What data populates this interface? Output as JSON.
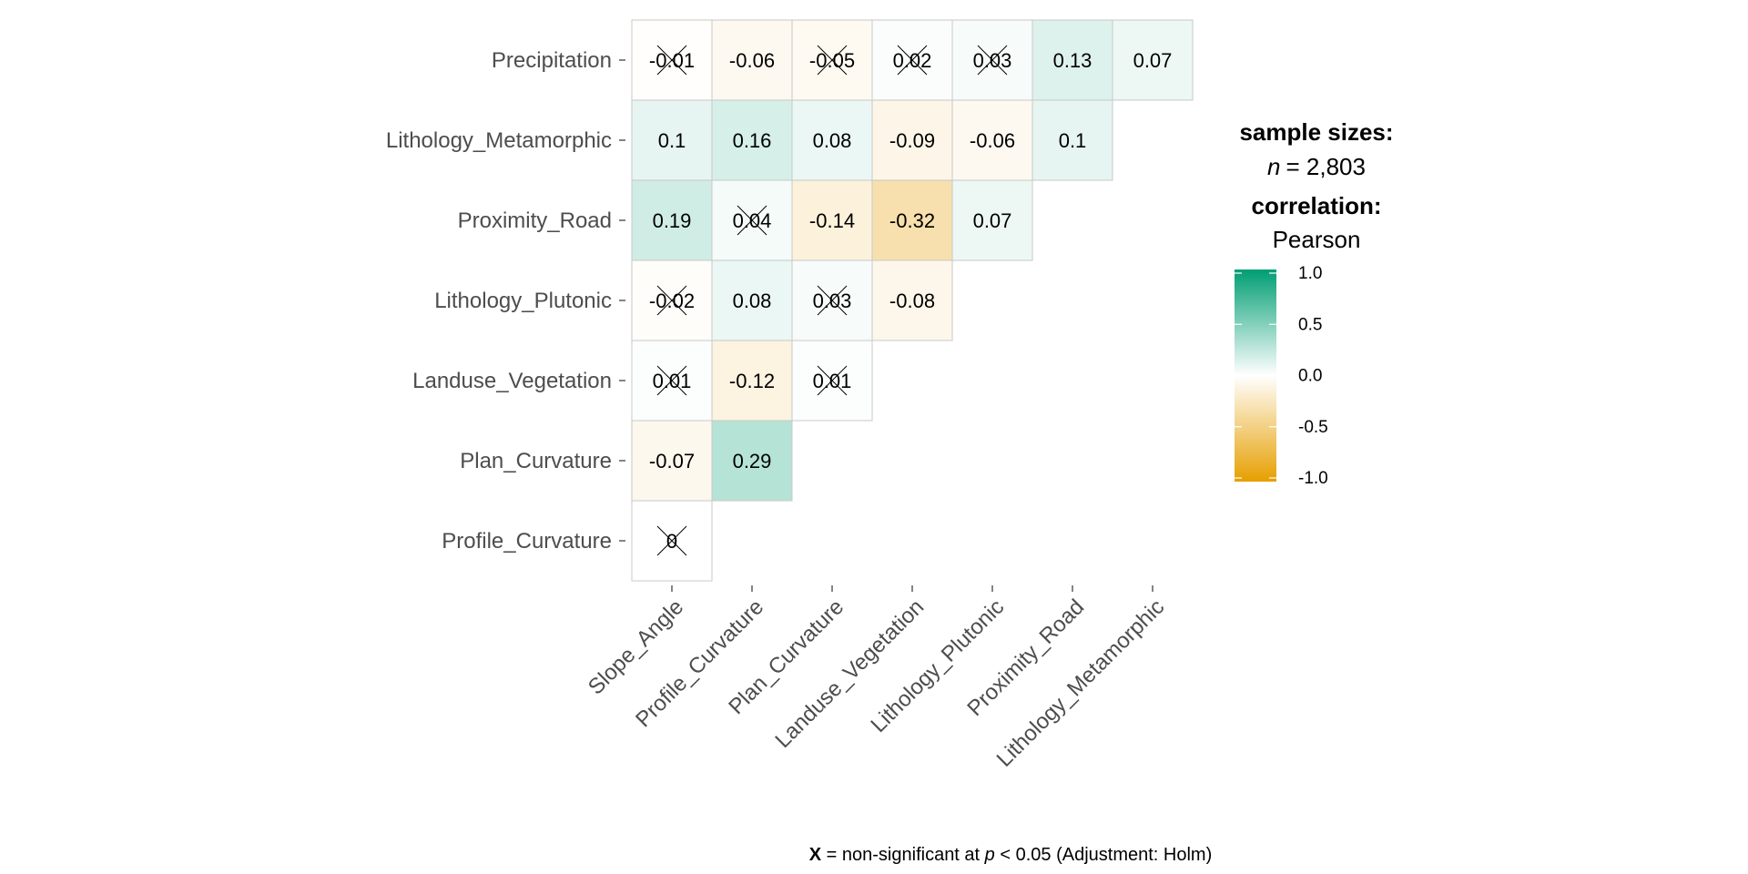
{
  "chart_data": {
    "type": "heatmap",
    "rows": [
      "Precipitation",
      "Lithology_Metamorphic",
      "Proximity_Road",
      "Lithology_Plutonic",
      "Landuse_Vegetation",
      "Plan_Curvature",
      "Profile_Curvature"
    ],
    "columns": [
      "Slope_Angle",
      "Profile_Curvature",
      "Plan_Curvature",
      "Landuse_Vegetation",
      "Lithology_Plutonic",
      "Proximity_Road",
      "Lithology_Metamorphic"
    ],
    "cells": [
      [
        {
          "label": "-0.01",
          "value": -0.01,
          "nonsig": true
        },
        {
          "label": "-0.06",
          "value": -0.06,
          "nonsig": false
        },
        {
          "label": "-0.05",
          "value": -0.05,
          "nonsig": true
        },
        {
          "label": "0.02",
          "value": 0.02,
          "nonsig": true
        },
        {
          "label": "0.03",
          "value": 0.03,
          "nonsig": true
        },
        {
          "label": "0.13",
          "value": 0.13,
          "nonsig": false
        },
        {
          "label": "0.07",
          "value": 0.07,
          "nonsig": false
        }
      ],
      [
        {
          "label": "0.1",
          "value": 0.1,
          "nonsig": false
        },
        {
          "label": "0.16",
          "value": 0.16,
          "nonsig": false
        },
        {
          "label": "0.08",
          "value": 0.08,
          "nonsig": false
        },
        {
          "label": "-0.09",
          "value": -0.09,
          "nonsig": false
        },
        {
          "label": "-0.06",
          "value": -0.06,
          "nonsig": false
        },
        {
          "label": "0.1",
          "value": 0.1,
          "nonsig": false
        }
      ],
      [
        {
          "label": "0.19",
          "value": 0.19,
          "nonsig": false
        },
        {
          "label": "0.04",
          "value": 0.04,
          "nonsig": true
        },
        {
          "label": "-0.14",
          "value": -0.14,
          "nonsig": false
        },
        {
          "label": "-0.32",
          "value": -0.32,
          "nonsig": false
        },
        {
          "label": "0.07",
          "value": 0.07,
          "nonsig": false
        }
      ],
      [
        {
          "label": "-0.02",
          "value": -0.02,
          "nonsig": true
        },
        {
          "label": "0.08",
          "value": 0.08,
          "nonsig": false
        },
        {
          "label": "0.03",
          "value": 0.03,
          "nonsig": true
        },
        {
          "label": "-0.08",
          "value": -0.08,
          "nonsig": false
        }
      ],
      [
        {
          "label": "0.01",
          "value": 0.01,
          "nonsig": true
        },
        {
          "label": "-0.12",
          "value": -0.12,
          "nonsig": false
        },
        {
          "label": "0.01",
          "value": 0.01,
          "nonsig": true
        }
      ],
      [
        {
          "label": "-0.07",
          "value": -0.07,
          "nonsig": false
        },
        {
          "label": "0.29",
          "value": 0.29,
          "nonsig": false
        }
      ],
      [
        {
          "label": "0",
          "value": 0,
          "nonsig": true
        }
      ]
    ],
    "color_scale": {
      "low": "#E69F00",
      "mid": "#FFFFFF",
      "high": "#009E73",
      "range": [
        -1.0,
        1.0
      ]
    },
    "legend": {
      "sample_title": "sample sizes:",
      "n_label": "n",
      "n_value": "= 2,803",
      "corr_title": "correlation:",
      "corr_method": "Pearson",
      "ticks": [
        "1.0",
        "0.5",
        "0.0",
        "-0.5",
        "-1.0"
      ],
      "tick_values": [
        1.0,
        0.5,
        0.0,
        -0.5,
        -1.0
      ]
    },
    "caption": {
      "marker": "X",
      "text_a": " = non-significant at ",
      "p": "p",
      "text_b": " < 0.05 (Adjustment: Holm)"
    }
  }
}
